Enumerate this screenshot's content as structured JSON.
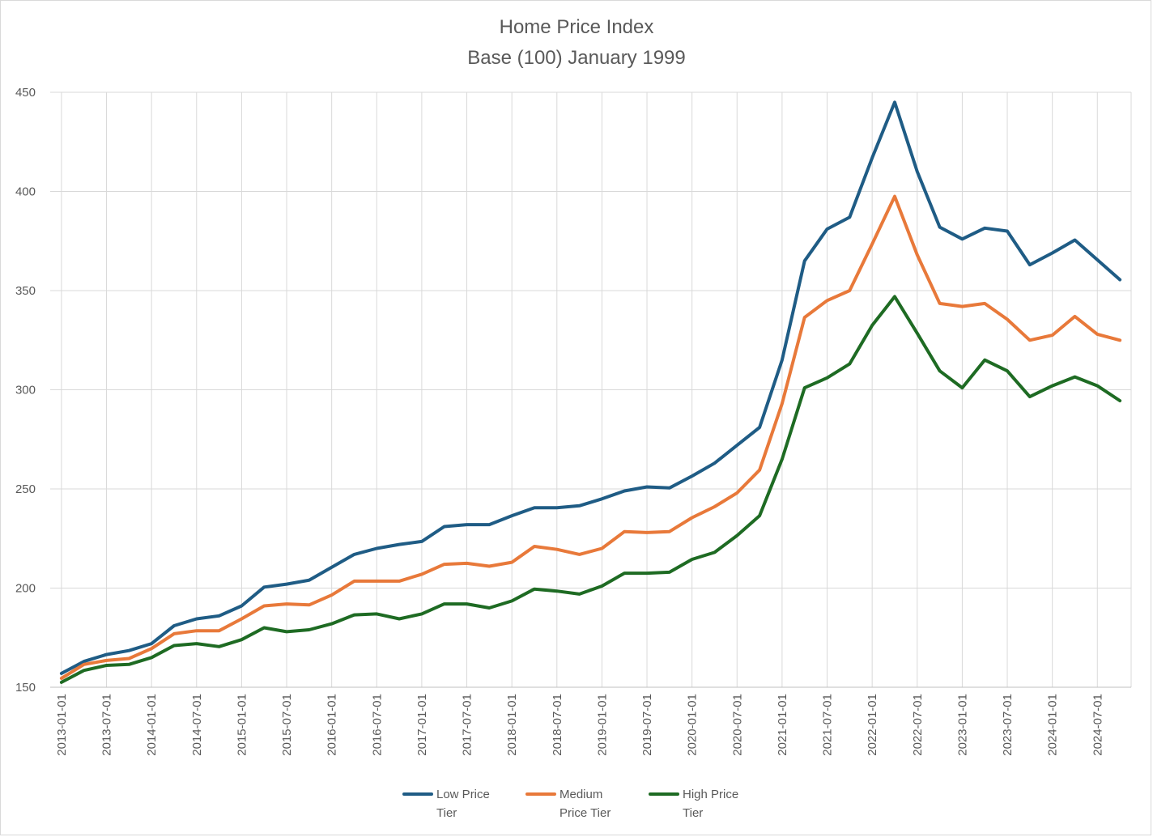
{
  "chart_data": {
    "type": "line",
    "title": "Home Price Index",
    "subtitle": "Base (100) January 1999",
    "xlabel": "",
    "ylabel": "",
    "ylim": [
      150,
      450
    ],
    "yticks": [
      150,
      200,
      250,
      300,
      350,
      400,
      450
    ],
    "grid": true,
    "legend_position": "bottom",
    "x": [
      "2013-01-01",
      "2013-04-01",
      "2013-07-01",
      "2013-10-01",
      "2014-01-01",
      "2014-04-01",
      "2014-07-01",
      "2014-10-01",
      "2015-01-01",
      "2015-04-01",
      "2015-07-01",
      "2015-10-01",
      "2016-01-01",
      "2016-04-01",
      "2016-07-01",
      "2016-10-01",
      "2017-01-01",
      "2017-04-01",
      "2017-07-01",
      "2017-10-01",
      "2018-01-01",
      "2018-04-01",
      "2018-07-01",
      "2018-10-01",
      "2019-01-01",
      "2019-04-01",
      "2019-07-01",
      "2019-10-01",
      "2020-01-01",
      "2020-04-01",
      "2020-07-01",
      "2020-10-01",
      "2021-01-01",
      "2021-04-01",
      "2021-07-01",
      "2021-10-01",
      "2022-01-01",
      "2022-04-01",
      "2022-07-01",
      "2022-10-01",
      "2023-01-01",
      "2023-04-01",
      "2023-07-01",
      "2023-10-01",
      "2024-01-01",
      "2024-04-01",
      "2024-07-01",
      "2024-10-01"
    ],
    "xtick_labels": [
      "2013-01-01",
      "2013-07-01",
      "2014-01-01",
      "2014-07-01",
      "2015-01-01",
      "2015-07-01",
      "2016-01-01",
      "2016-07-01",
      "2017-01-01",
      "2017-07-01",
      "2018-01-01",
      "2018-07-01",
      "2019-01-01",
      "2019-07-01",
      "2020-01-01",
      "2020-07-01",
      "2021-01-01",
      "2021-07-01",
      "2022-01-01",
      "2022-07-01",
      "2023-01-01",
      "2023-07-01",
      "2024-01-01",
      "2024-07-01"
    ],
    "series": [
      {
        "name": "Low Price Tier",
        "color": "#1f5c85",
        "values": [
          157,
          163,
          166.5,
          168.5,
          172,
          181,
          184.5,
          186,
          191,
          200.5,
          202,
          204,
          210.5,
          217,
          220,
          222,
          223.5,
          231,
          232,
          232,
          236.5,
          240.5,
          240.5,
          241.5,
          245,
          249,
          251,
          250.5,
          256.5,
          263,
          272,
          281,
          315,
          365,
          381,
          387,
          417,
          445,
          410,
          382,
          376,
          381.5,
          380,
          363,
          369,
          375.5,
          365.5,
          355.5
        ]
      },
      {
        "name": "Medium Price Tier",
        "color": "#e8793a",
        "values": [
          154.5,
          161.5,
          163.5,
          164.5,
          169.5,
          177,
          178.5,
          178.5,
          184.5,
          191,
          192,
          191.5,
          196.5,
          203.5,
          203.5,
          203.5,
          207,
          212,
          212.5,
          211,
          213,
          221,
          219.5,
          217,
          220,
          228.5,
          228,
          228.5,
          235.5,
          241,
          248,
          259.5,
          293,
          336.5,
          345,
          350,
          373.5,
          397.5,
          368,
          343.5,
          342,
          343.5,
          335.5,
          325,
          327.5,
          337,
          328,
          325
        ]
      },
      {
        "name": "High Price Tier",
        "color": "#1e6b23",
        "values": [
          152.5,
          158.5,
          161,
          161.5,
          165,
          171,
          172,
          170.5,
          174,
          180,
          178,
          179,
          182,
          186.5,
          187,
          184.5,
          187,
          192,
          192,
          190,
          193.5,
          199.5,
          198.5,
          197,
          201,
          207.5,
          207.5,
          208,
          214.5,
          218,
          226.5,
          236.5,
          265,
          301,
          306,
          313,
          332.5,
          347,
          328.5,
          309.5,
          301,
          315,
          309.5,
          296.5,
          302,
          306.5,
          302,
          294.5
        ]
      }
    ]
  }
}
